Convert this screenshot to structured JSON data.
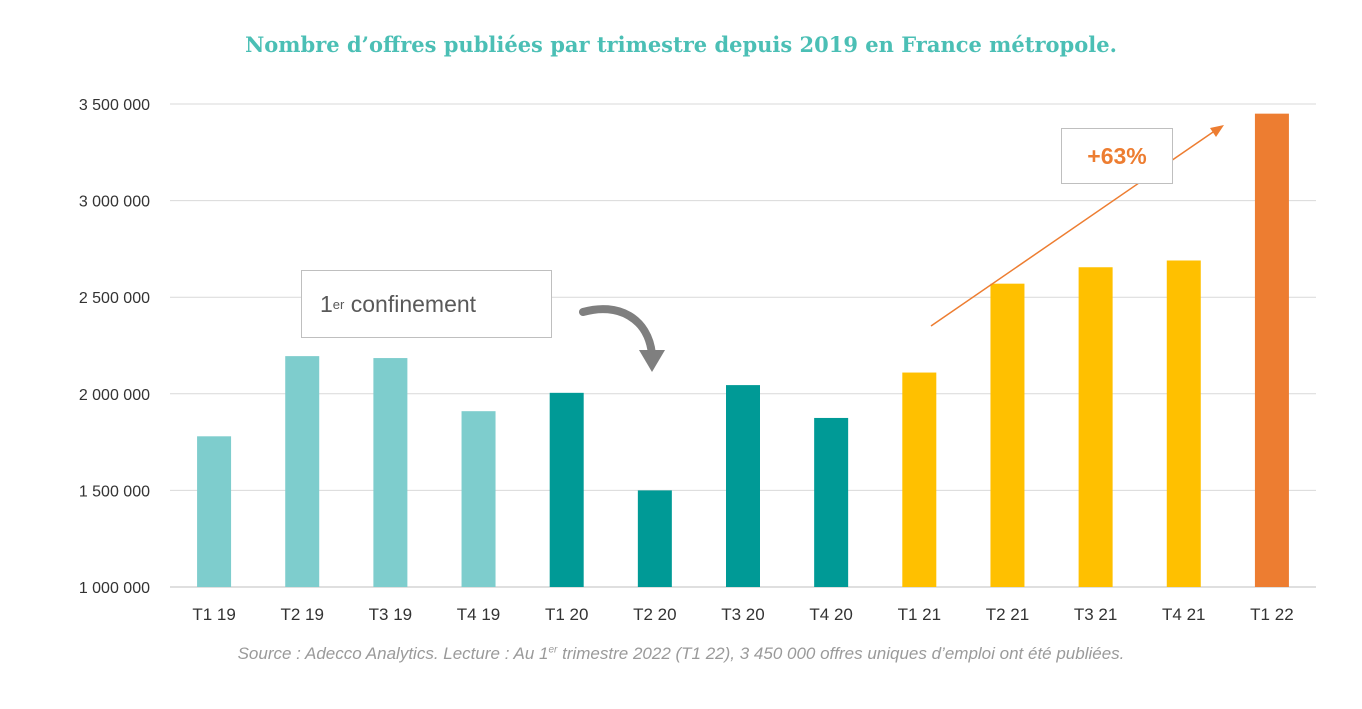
{
  "title": "Nombre d’offres publiées par trimestre depuis 2019 en France métropole.",
  "annotations": {
    "lockdown_main": "1",
    "lockdown_sup": "er",
    "lockdown_rest": " confinement",
    "growth": "+63%"
  },
  "source": {
    "part1": "Source : Adecco Analytics. Lecture : Au 1",
    "sup": "er",
    "part2": " trimestre 2022 (T1 22), 3 450 000 offres uniques d’emploi ont été publiées."
  },
  "colors": {
    "2019": "#7ecdcd",
    "2020": "#009a96",
    "2021": "#ffc000",
    "2022": "#ed7d31",
    "title": "#4bbfb5",
    "grid": "#d9d9d9"
  },
  "chart_data": {
    "type": "bar",
    "categories": [
      "T1 19",
      "T2 19",
      "T3 19",
      "T4 19",
      "T1 20",
      "T2 20",
      "T3 20",
      "T4 20",
      "T1 21",
      "T2 21",
      "T3 21",
      "T4 21",
      "T1 22"
    ],
    "values": [
      1780000,
      2195000,
      2185000,
      1910000,
      2005000,
      1500000,
      2045000,
      1875000,
      2110000,
      2570000,
      2655000,
      2690000,
      3450000
    ],
    "year_group": [
      "2019",
      "2019",
      "2019",
      "2019",
      "2020",
      "2020",
      "2020",
      "2020",
      "2021",
      "2021",
      "2021",
      "2021",
      "2022"
    ],
    "ylim": [
      1000000,
      3500000
    ],
    "yticks": [
      1000000,
      1500000,
      2000000,
      2500000,
      3000000,
      3500000
    ],
    "ytick_labels": [
      "1 000 000",
      "1 500 000",
      "2 000 000",
      "2 500 000",
      "3 000 000",
      "3 500 000"
    ],
    "grid": true
  }
}
